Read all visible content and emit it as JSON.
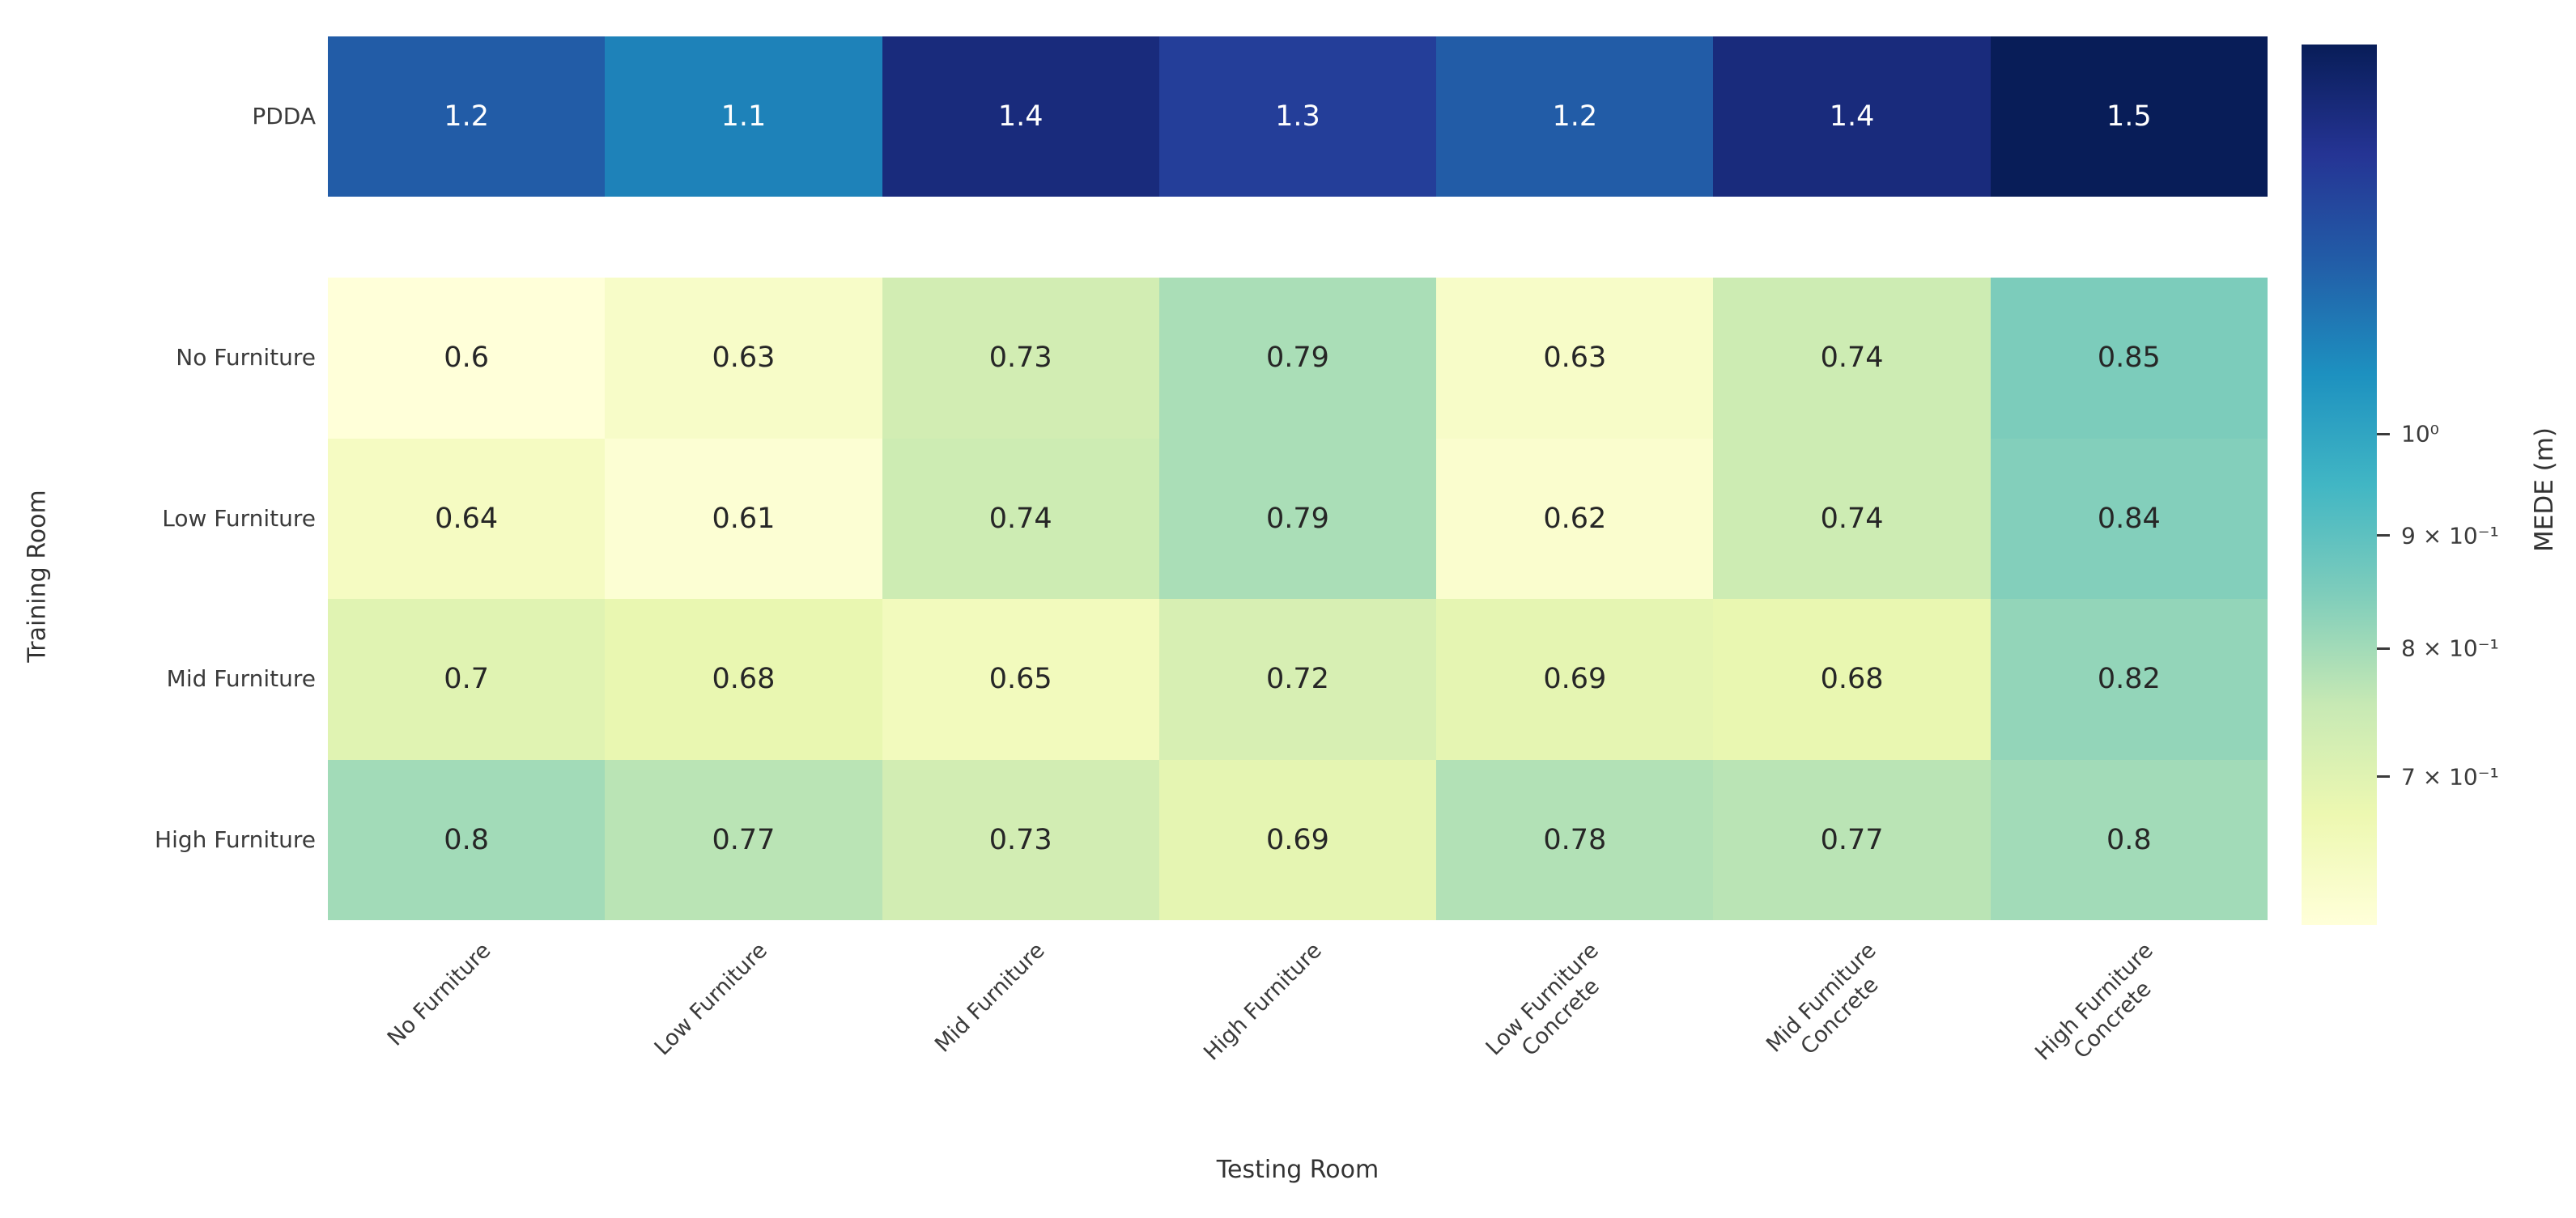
{
  "chart_data": {
    "type": "heatmap",
    "title": "",
    "xlabel": "Testing Room",
    "ylabel": "Training Room",
    "x_categories": [
      "No Furniture",
      "Low Furniture",
      "Mid Furniture",
      "High Furniture",
      "Low Furniture\nConcrete",
      "Mid Furniture\nConcrete",
      "High Furniture\nConcrete"
    ],
    "top_heatmap": {
      "row_label": "PDDA",
      "values": [
        1.2,
        1.1,
        1.4,
        1.3,
        1.2,
        1.4,
        1.5
      ]
    },
    "main_heatmap": {
      "row_labels": [
        "No Furniture",
        "Low Furniture",
        "Mid Furniture",
        "High Furniture"
      ],
      "values": [
        [
          0.6,
          0.63,
          0.73,
          0.79,
          0.63,
          0.74,
          0.85
        ],
        [
          0.64,
          0.61,
          0.74,
          0.79,
          0.62,
          0.74,
          0.84
        ],
        [
          0.7,
          0.68,
          0.65,
          0.72,
          0.69,
          0.68,
          0.82
        ],
        [
          0.8,
          0.77,
          0.73,
          0.69,
          0.78,
          0.77,
          0.8
        ]
      ]
    },
    "colorbar": {
      "label": "MEDE (m)",
      "scale": "log",
      "vmin": 0.6,
      "vmax": 1.5,
      "ticks": [
        {
          "value": 1.0,
          "label": "10⁰"
        },
        {
          "value": 0.9,
          "label": "9 × 10⁻¹"
        },
        {
          "value": 0.8,
          "label": "8 × 10⁻¹"
        },
        {
          "value": 0.7,
          "label": "7 × 10⁻¹"
        }
      ],
      "colormap_name": "YlGnBu",
      "colormap_stops": [
        "#ffffd9",
        "#edf8b1",
        "#c7e9b4",
        "#7fcdbb",
        "#41b6c4",
        "#1d91c0",
        "#225ea8",
        "#253494",
        "#081d58"
      ]
    },
    "annotation_text_colors": {
      "dark": "#262626",
      "light": "#ffffff"
    },
    "layout_hints": {
      "grid": false,
      "legend": "colorbar-right",
      "x_tick_rotation": 45
    }
  }
}
